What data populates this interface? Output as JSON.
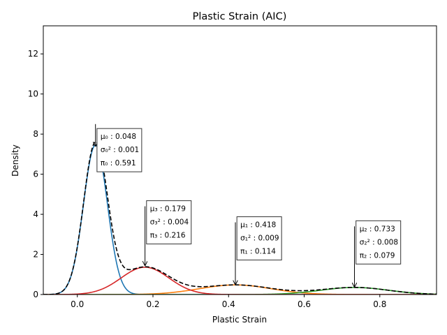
{
  "chart_data": {
    "type": "line",
    "title": "Plastic Strain (AIC)",
    "xlabel": "Plastic Strain",
    "ylabel": "Density",
    "xlim": [
      -0.09,
      0.95
    ],
    "ylim": [
      0,
      13.4
    ],
    "xticks": [
      0.0,
      0.2,
      0.4,
      0.6,
      0.8
    ],
    "xtick_labels": [
      "0.0",
      "0.2",
      "0.4",
      "0.6",
      "0.8"
    ],
    "yticks": [
      0,
      2,
      4,
      6,
      8,
      10,
      12
    ],
    "ytick_labels": [
      "0",
      "2",
      "4",
      "6",
      "8",
      "10",
      "12"
    ],
    "grid": false,
    "components": [
      {
        "index": 0,
        "mu": 0.048,
        "var": 0.001,
        "pi": 0.591,
        "color": "#1f77b4",
        "mu_label": "μ₀ : 0.048",
        "var_label": "σ₀² : 0.001",
        "pi_label": "π₀ : 0.591"
      },
      {
        "index": 1,
        "mu": 0.418,
        "var": 0.009,
        "pi": 0.114,
        "color": "#ff7f0e",
        "mu_label": "μ₁ : 0.418",
        "var_label": "σ₁² : 0.009",
        "pi_label": "π₁ : 0.114"
      },
      {
        "index": 2,
        "mu": 0.733,
        "var": 0.008,
        "pi": 0.079,
        "color": "#2ca02c",
        "mu_label": "μ₂ : 0.733",
        "var_label": "σ₂² : 0.008",
        "pi_label": "π₂ : 0.079"
      },
      {
        "index": 3,
        "mu": 0.179,
        "var": 0.004,
        "pi": 0.216,
        "color": "#d62728",
        "mu_label": "μ₃ : 0.179",
        "var_label": "σ₃² : 0.004",
        "pi_label": "π₃ : 0.216"
      }
    ],
    "mixture": {
      "color": "#000000",
      "style": "dashed"
    },
    "annotations": [
      {
        "component": 0,
        "arrow_from": [
          0.048,
          8.5
        ],
        "arrow_to": [
          0.048,
          7.4
        ],
        "box_at": [
          0.052,
          8.0
        ]
      },
      {
        "component": 3,
        "arrow_from": [
          0.179,
          4.4
        ],
        "arrow_to": [
          0.179,
          1.45
        ],
        "box_at": [
          0.183,
          4.4
        ]
      },
      {
        "component": 1,
        "arrow_from": [
          0.418,
          3.6
        ],
        "arrow_to": [
          0.418,
          0.5
        ],
        "box_at": [
          0.422,
          3.6
        ]
      },
      {
        "component": 2,
        "arrow_from": [
          0.733,
          3.4
        ],
        "arrow_to": [
          0.733,
          0.38
        ],
        "box_at": [
          0.737,
          3.4
        ]
      }
    ]
  }
}
